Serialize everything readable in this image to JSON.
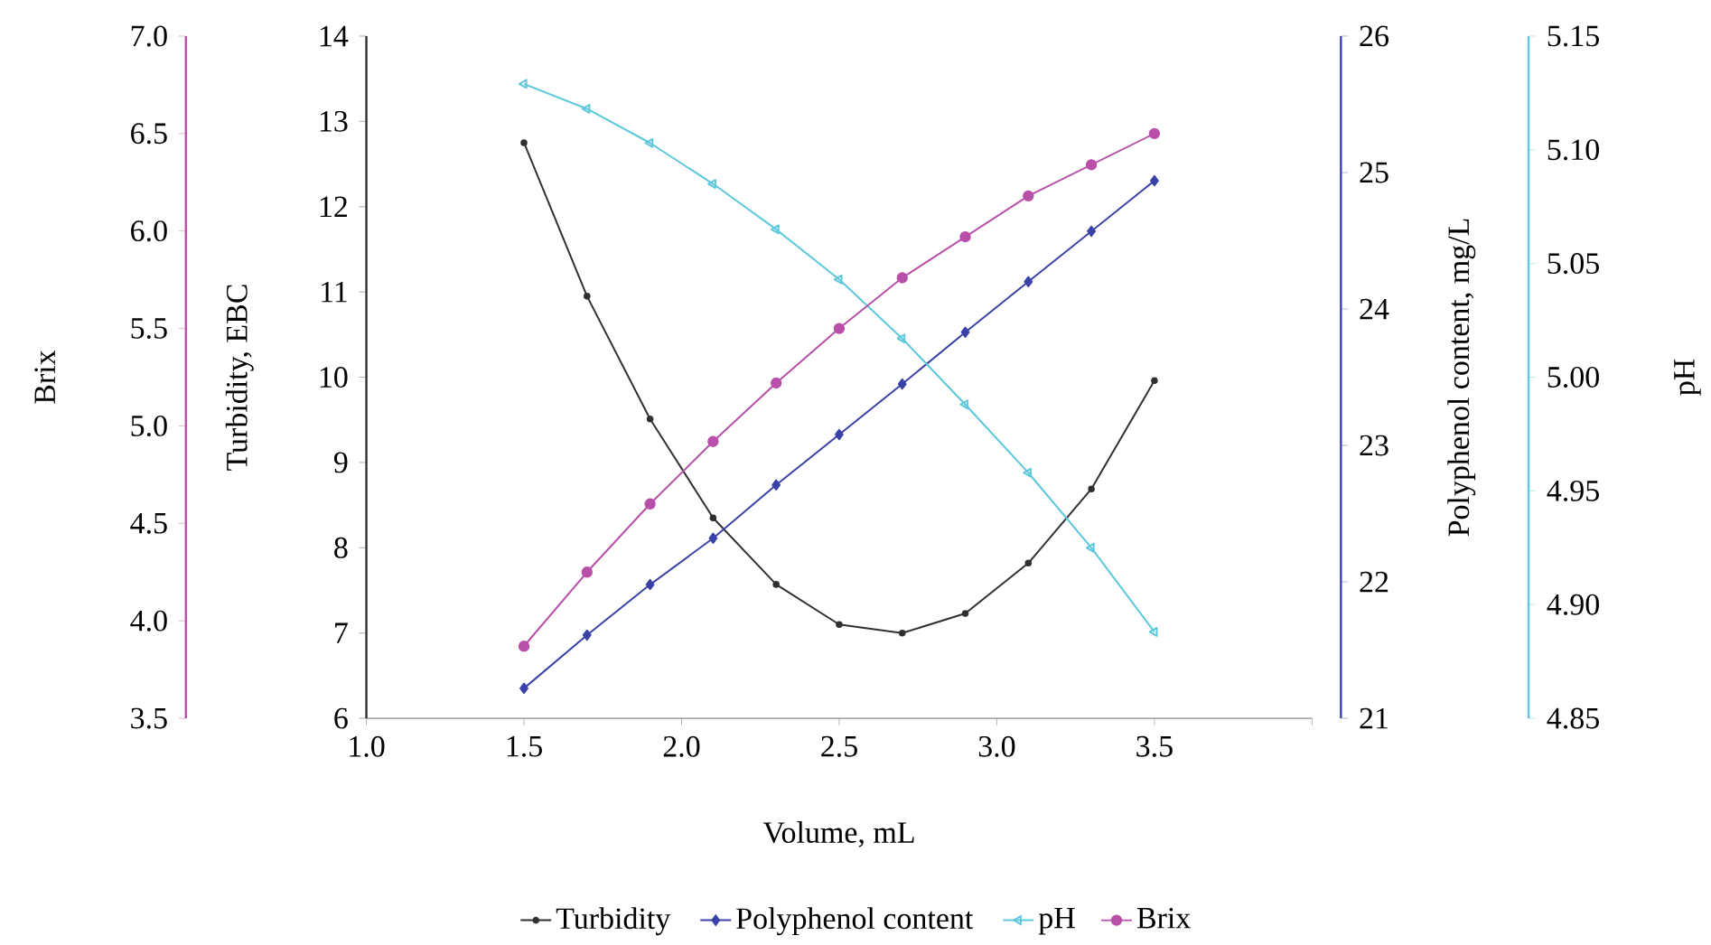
{
  "chart_data": [
    {
      "type": "line",
      "xlabel": "Volume, mL",
      "ylabel": "Turbidity, EBC",
      "y2label": "Polyphenol content, mg/L",
      "y3label": "pH",
      "x": [
        1.5,
        1.7,
        1.9,
        2.1,
        2.3,
        2.5,
        2.7,
        2.9,
        3.1,
        3.3,
        3.5
      ],
      "xlim": [
        1.0,
        4.0
      ],
      "xticks": [
        {
          "value": 1.0,
          "label": "1.0"
        },
        {
          "value": 1.5,
          "label": "1.5"
        },
        {
          "value": 2.0,
          "label": "2.0"
        },
        {
          "value": 2.5,
          "label": "2.5"
        },
        {
          "value": 3.0,
          "label": "3.0"
        },
        {
          "value": 3.5,
          "label": "3.5"
        },
        {
          "value": 4.0,
          "label": null
        }
      ],
      "ylim": [
        6,
        14
      ],
      "yticks": [
        6,
        7,
        8,
        9,
        10,
        11,
        12,
        13,
        14
      ],
      "y2lim": [
        21,
        26
      ],
      "y2ticks": [
        21,
        22,
        23,
        24,
        25,
        26
      ],
      "y3lim": [
        4.85,
        5.15
      ],
      "y3ticks": [
        4.85,
        {
          "value": 4.9,
          "label": "4.90"
        },
        4.95,
        {
          "value": 5.0,
          "label": "5.00"
        },
        5.05,
        {
          "value": 5.1,
          "label": "5.10"
        },
        5.15
      ],
      "legend": "bottom",
      "line_style": "solid",
      "series": [
        {
          "name": "Turbidity",
          "color": "#303030",
          "axis": "y",
          "marker": "circle",
          "values": [
            12.75,
            10.95,
            9.51,
            8.35,
            7.57,
            7.1,
            7.0,
            7.23,
            7.82,
            8.69,
            9.96
          ]
        },
        {
          "name": "Polyphenol content",
          "color": "#3a42a8",
          "axis": "y2",
          "marker": "diamond",
          "values": [
            21.22,
            21.61,
            21.98,
            22.32,
            22.71,
            23.08,
            23.45,
            23.83,
            24.2,
            24.57,
            24.94
          ]
        },
        {
          "name": "pH",
          "color": "#5cc8dc",
          "axis": "y3",
          "marker": "triangle",
          "values": [
            5.129,
            5.118,
            5.103,
            5.085,
            5.065,
            5.043,
            5.017,
            4.988,
            4.958,
            4.925,
            4.888
          ]
        }
      ]
    },
    {
      "type": "line",
      "ylabel": "Brix",
      "x": [
        1.5,
        1.7,
        1.9,
        2.1,
        2.3,
        2.5,
        2.7,
        2.9,
        3.1,
        3.3,
        3.5
      ],
      "xlim": [
        1.0,
        4.0
      ],
      "ylim": [
        3.5,
        7.0
      ],
      "yticks": [
        {
          "value": 3.5,
          "label": "3.5"
        },
        {
          "value": 4.0,
          "label": "4.0"
        },
        {
          "value": 4.5,
          "label": "4.5"
        },
        {
          "value": 5.0,
          "label": "5.0"
        },
        {
          "value": 5.5,
          "label": "5.5"
        },
        {
          "value": 6.0,
          "label": "6.0"
        },
        {
          "value": 6.5,
          "label": "6.5"
        },
        {
          "value": 7.0,
          "label": "7.0"
        }
      ],
      "tick_labels": "y",
      "legend": "bottom",
      "line_style": "solid",
      "series": [
        {
          "name": "Brix",
          "color": "#b84fa8",
          "marker": "circle",
          "values": [
            3.87,
            4.25,
            4.6,
            4.92,
            5.22,
            5.5,
            5.76,
            5.97,
            6.18,
            6.34,
            6.5
          ]
        }
      ]
    }
  ]
}
